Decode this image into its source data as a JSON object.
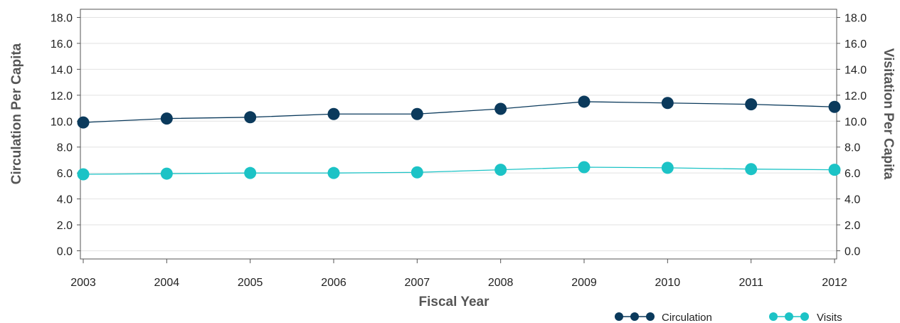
{
  "chart_data": {
    "type": "line",
    "categories": [
      "2003",
      "2004",
      "2005",
      "2006",
      "2007",
      "2008",
      "2009",
      "2010",
      "2011",
      "2012"
    ],
    "series": [
      {
        "name": "Circulation",
        "axis": "left",
        "color": "#0b3a5c",
        "values": [
          9.9,
          10.2,
          10.3,
          10.55,
          10.55,
          10.95,
          11.5,
          11.4,
          11.3,
          11.1
        ]
      },
      {
        "name": "Visits",
        "axis": "right",
        "color": "#1cc3c6",
        "values": [
          5.9,
          5.95,
          6.0,
          6.0,
          6.05,
          6.25,
          6.45,
          6.4,
          6.3,
          6.25
        ]
      }
    ],
    "xlabel": "Fiscal Year",
    "ylabel_left": "Circulation Per Capita",
    "ylabel_right": "Visitation Per Capita",
    "ylim": [
      0,
      18
    ],
    "y_ticks": [
      "0.0",
      "2.0",
      "4.0",
      "6.0",
      "8.0",
      "10.0",
      "12.0",
      "14.0",
      "16.0",
      "18.0"
    ],
    "grid": true,
    "legend_position": "bottom-right"
  }
}
